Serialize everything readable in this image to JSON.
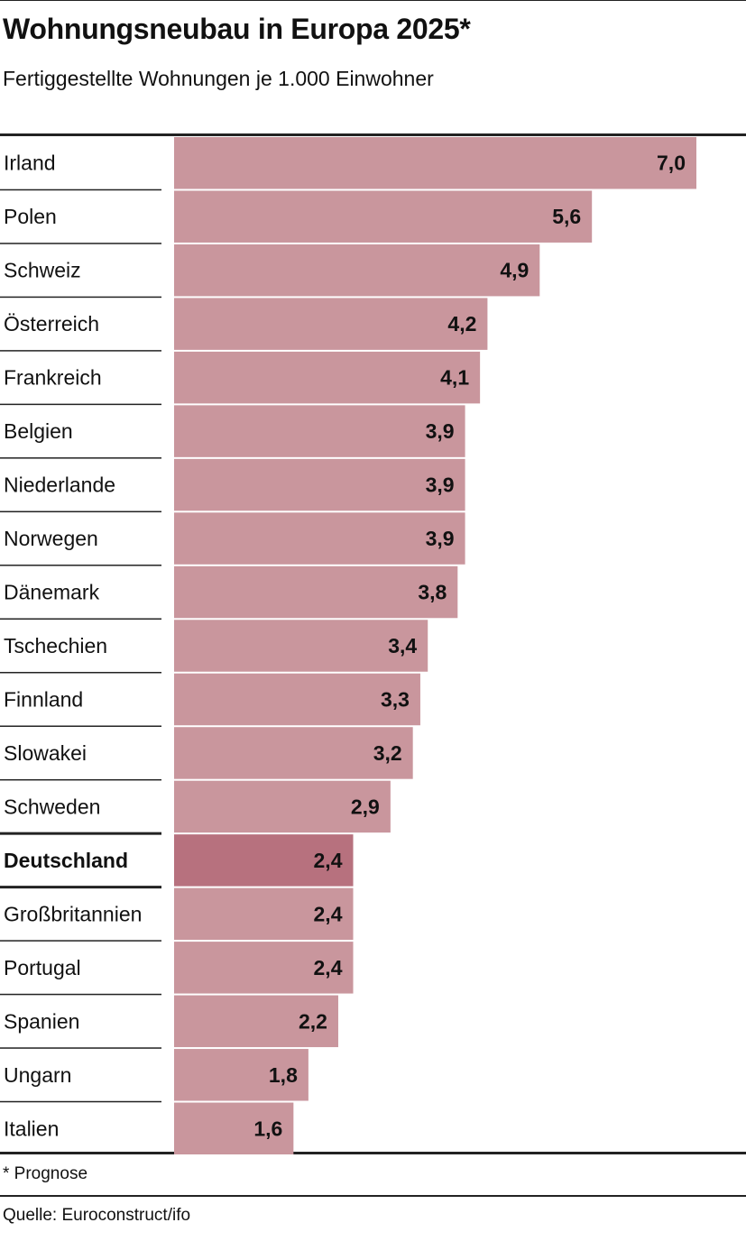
{
  "title": "Wohnungsneubau in Europa 2025*",
  "subtitle": "Fertiggestellte Wohnungen je 1.000 Einwohner",
  "footnote": "* Prognose",
  "source": "Quelle: Euroconstruct/ifo",
  "colors": {
    "bar": "#c9969d",
    "bar_highlight": "#b7717e",
    "text": "#111111",
    "rule": "#222222"
  },
  "chart_data": {
    "type": "bar",
    "orientation": "horizontal",
    "title": "Wohnungsneubau in Europa 2025*",
    "subtitle": "Fertiggestellte Wohnungen je 1.000 Einwohner",
    "xlabel": "",
    "ylabel": "",
    "xlim": [
      0,
      7.0
    ],
    "grid": false,
    "legend": "none",
    "highlight": "Deutschland",
    "categories": [
      "Irland",
      "Polen",
      "Schweiz",
      "Österreich",
      "Frankreich",
      "Belgien",
      "Niederlande",
      "Norwegen",
      "Dänemark",
      "Tschechien",
      "Finnland",
      "Slowakei",
      "Schweden",
      "Deutschland",
      "Großbritannien",
      "Portugal",
      "Spanien",
      "Ungarn",
      "Italien"
    ],
    "values": [
      7.0,
      5.6,
      4.9,
      4.2,
      4.1,
      3.9,
      3.9,
      3.9,
      3.8,
      3.4,
      3.3,
      3.2,
      2.9,
      2.4,
      2.4,
      2.4,
      2.2,
      1.8,
      1.6
    ],
    "value_labels": [
      "7,0",
      "5,6",
      "4,9",
      "4,2",
      "4,1",
      "3,9",
      "3,9",
      "3,9",
      "3,8",
      "3,4",
      "3,3",
      "3,2",
      "2,9",
      "2,4",
      "2,4",
      "2,4",
      "2,2",
      "1,8",
      "1,6"
    ]
  }
}
